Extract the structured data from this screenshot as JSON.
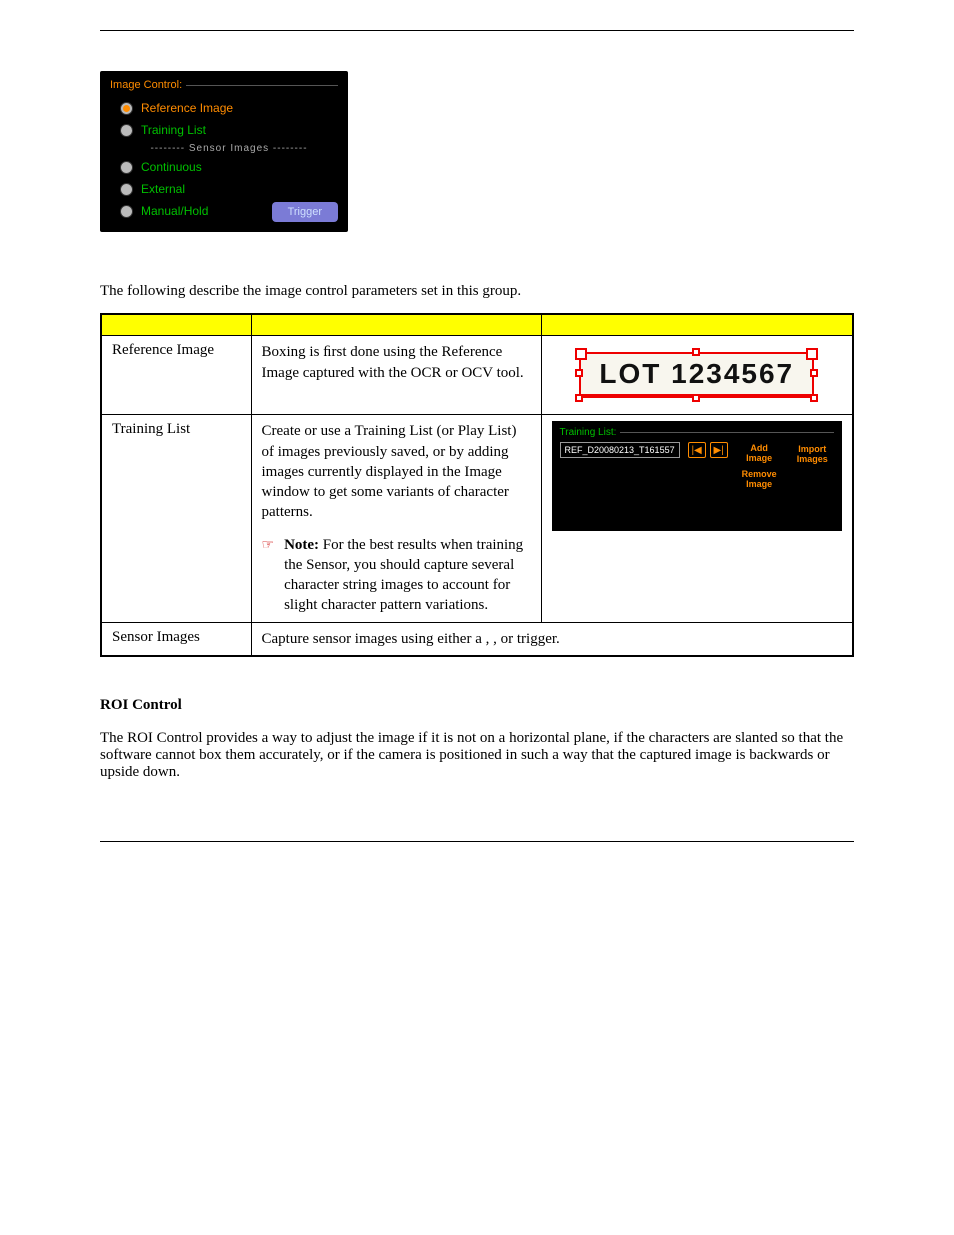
{
  "image_control": {
    "legend": "Image Control:",
    "items": {
      "reference": "Reference Image",
      "training": "Training List",
      "divider": "-------- Sensor Images --------",
      "continuous": "Continuous",
      "external": "External",
      "manual": "Manual/Hold"
    },
    "trigger_label": "Trigger"
  },
  "intro": "The following describe the image control parameters set in this group.",
  "rows": {
    "ref": {
      "name": "Reference Image",
      "desc": "Boxing is ﬁrst done using the Reference Image captured with the OCR or OCV tool.",
      "lot_text": "LOT 1234567"
    },
    "tl": {
      "name": "Training List",
      "desc": "Create or use a Training List (or Play List) of images previously saved, or by adding images currently displayed in the Image window to get some variants of character patterns.",
      "note_label": "Note:",
      "note": "For the best results when training the Sensor, you should capture several character string images to account for slight character pattern variations.",
      "panel": {
        "legend": "Training List:",
        "ref": "REF_D20080213_T161557",
        "add": "Add Image",
        "remove": "Remove Image",
        "import": "Import Images"
      }
    },
    "sensor": {
      "name": "Sensor Images",
      "desc_a": "Capture sensor images using either a ",
      "desc_b": ", ",
      "desc_c": ", or ",
      "desc_d": " trigger."
    }
  },
  "roi": {
    "title": "ROI Control",
    "body": "The ROI Control provides a way to adjust the image if it is not on a horizontal plane, if the characters are slanted so that the software cannot box them accurately, or if the camera is positioned in such a way that the captured image is backwards or upside down."
  }
}
